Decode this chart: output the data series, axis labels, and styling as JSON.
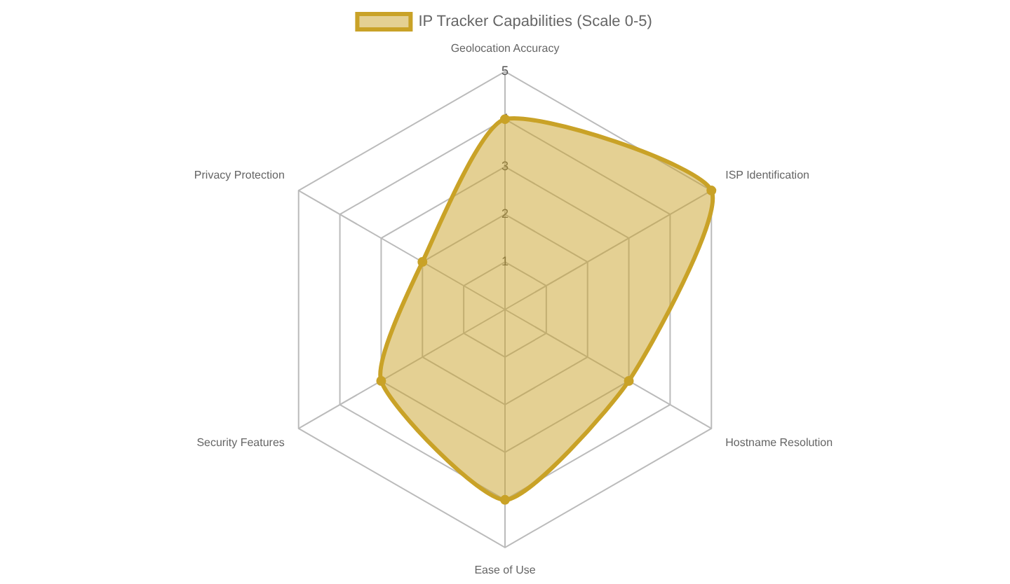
{
  "chart_data": {
    "type": "radar",
    "categories": [
      "Geolocation Accuracy",
      "ISP Identification",
      "Hostname Resolution",
      "Ease of Use",
      "Security Features",
      "Privacy Protection"
    ],
    "series": [
      {
        "name": "IP Tracker Capabilities (Scale 0-5)",
        "color": "#c9a227",
        "values": [
          4,
          5,
          3,
          4,
          3,
          2
        ]
      }
    ],
    "ylim": [
      0,
      5
    ],
    "yticks": [
      1,
      2,
      3,
      4,
      5
    ],
    "grid": true,
    "legend": "top",
    "marker": "circle"
  }
}
